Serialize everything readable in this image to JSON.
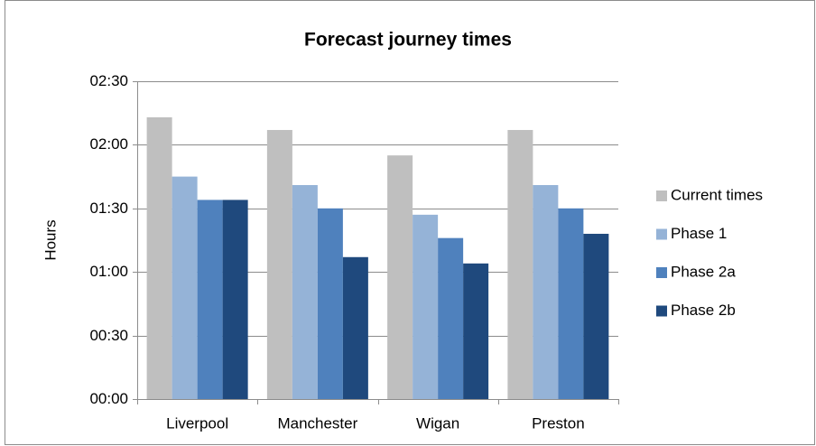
{
  "chart_data": {
    "type": "bar",
    "title": "Forecast journey times",
    "y_label": "Hours",
    "categories": [
      "Liverpool",
      "Manchester",
      "Wigan",
      "Preston"
    ],
    "series": [
      {
        "name": "Current times",
        "color": "#bfbfbf",
        "values": [
          133,
          127,
          115,
          127
        ]
      },
      {
        "name": "Phase 1",
        "color": "#95b3d7",
        "values": [
          105,
          101,
          87,
          101
        ]
      },
      {
        "name": "Phase 2a",
        "color": "#4f81bd",
        "values": [
          94,
          90,
          76,
          90
        ]
      },
      {
        "name": "Phase 2b",
        "color": "#1f497d",
        "values": [
          94,
          67,
          64,
          78
        ]
      }
    ],
    "ylim": [
      0,
      150
    ],
    "yticks": [
      {
        "value": 0,
        "label": "00:00"
      },
      {
        "value": 30,
        "label": "00:30"
      },
      {
        "value": 60,
        "label": "01:00"
      },
      {
        "value": 90,
        "label": "01:30"
      },
      {
        "value": 120,
        "label": "02:00"
      },
      {
        "value": 150,
        "label": "02:30"
      }
    ],
    "grid": true,
    "legend": "right"
  }
}
